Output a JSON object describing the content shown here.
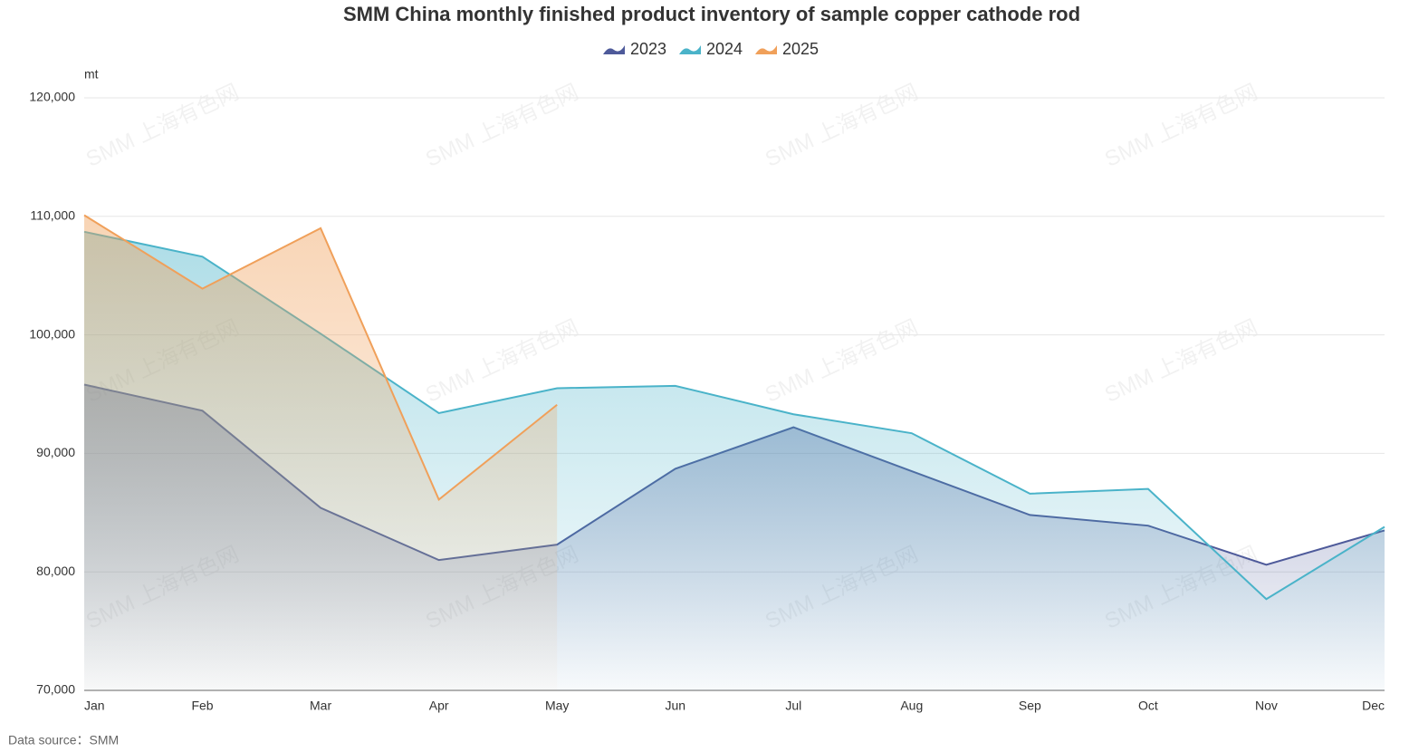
{
  "chart_data": {
    "type": "area",
    "title": "SMM China monthly finished product inventory of sample copper cathode rod",
    "y_unit": "mt",
    "source": "Data source：SMM",
    "watermark": "SMM 上海有色网",
    "categories": [
      "Jan",
      "Feb",
      "Mar",
      "Apr",
      "May",
      "Jun",
      "Jul",
      "Aug",
      "Sep",
      "Oct",
      "Nov",
      "Dec"
    ],
    "series": [
      {
        "name": "2023",
        "color": "#4e5a9a",
        "values": [
          95800,
          93600,
          85400,
          81000,
          82300,
          88700,
          92200,
          88500,
          84800,
          83900,
          80600,
          83500
        ]
      },
      {
        "name": "2024",
        "color": "#4ab3c9",
        "values": [
          108700,
          106600,
          100100,
          93400,
          95500,
          95700,
          93300,
          91700,
          86600,
          87000,
          77700,
          83800
        ]
      },
      {
        "name": "2025",
        "color": "#f0a05a",
        "values": [
          110100,
          103900,
          109000,
          86100,
          94100,
          null,
          null,
          null,
          null,
          null,
          null,
          null
        ]
      }
    ],
    "ylim": [
      70000,
      120000
    ],
    "yticks": [
      {
        "value": 70000,
        "label": "70,000"
      },
      {
        "value": 80000,
        "label": "80,000"
      },
      {
        "value": 90000,
        "label": "90,000"
      },
      {
        "value": 100000,
        "label": "100,000"
      },
      {
        "value": 110000,
        "label": "110,000"
      },
      {
        "value": 120000,
        "label": "120,000"
      }
    ],
    "grid": true,
    "legend": "top"
  }
}
